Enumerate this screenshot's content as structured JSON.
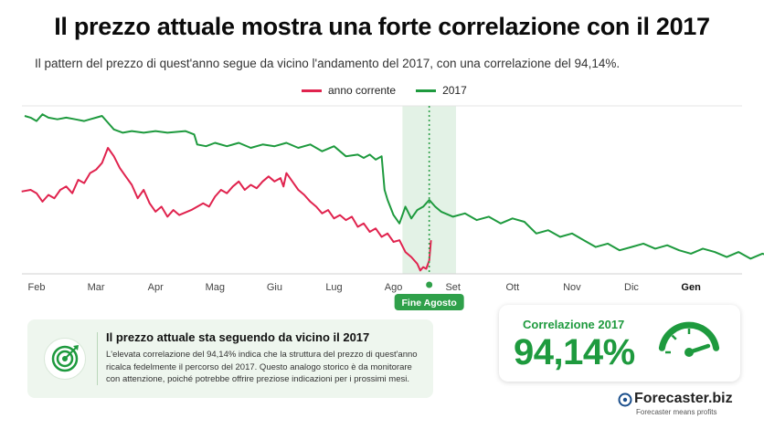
{
  "header": {
    "title": "Il prezzo attuale mostra una forte correlazione con il 2017",
    "subtitle": "Il pattern del prezzo di quest'anno segue da vicino l'andamento del 2017, con una correlazione del 94,14%."
  },
  "colors": {
    "current": "#e0234e",
    "y2017": "#1e9a3e",
    "highlight": "#e3f2e6",
    "marker": "#2fa04a"
  },
  "chart_data": {
    "type": "line",
    "x_ticks": [
      {
        "label": "Feb",
        "bold": false
      },
      {
        "label": "Mar",
        "bold": false
      },
      {
        "label": "Apr",
        "bold": false
      },
      {
        "label": "Mag",
        "bold": false
      },
      {
        "label": "Giu",
        "bold": false
      },
      {
        "label": "Lug",
        "bold": false
      },
      {
        "label": "Ago",
        "bold": false
      },
      {
        "label": "Set",
        "bold": false
      },
      {
        "label": "Ott",
        "bold": false
      },
      {
        "label": "Nov",
        "bold": false
      },
      {
        "label": "Dic",
        "bold": false
      },
      {
        "label": "Gen",
        "bold": true
      }
    ],
    "x_range": [
      0,
      12.8
    ],
    "y_range": [
      0,
      100
    ],
    "grid": false,
    "legend_position": "top-center",
    "highlight_band": [
      6.15,
      7.05
    ],
    "annotation": {
      "label": "Fine Agosto",
      "x": 6.6
    },
    "series": [
      {
        "name": "anno corrente",
        "color_key": "current",
        "points": [
          [
            -0.25,
            49
          ],
          [
            -0.1,
            50
          ],
          [
            0.0,
            48
          ],
          [
            0.1,
            43
          ],
          [
            0.2,
            47
          ],
          [
            0.3,
            45
          ],
          [
            0.4,
            50
          ],
          [
            0.5,
            52
          ],
          [
            0.6,
            48
          ],
          [
            0.7,
            56
          ],
          [
            0.8,
            54
          ],
          [
            0.9,
            60
          ],
          [
            1.0,
            62
          ],
          [
            1.1,
            66
          ],
          [
            1.2,
            75
          ],
          [
            1.3,
            70
          ],
          [
            1.4,
            63
          ],
          [
            1.5,
            58
          ],
          [
            1.6,
            53
          ],
          [
            1.7,
            45
          ],
          [
            1.8,
            50
          ],
          [
            1.9,
            42
          ],
          [
            2.0,
            37
          ],
          [
            2.1,
            40
          ],
          [
            2.2,
            34
          ],
          [
            2.3,
            38
          ],
          [
            2.4,
            35
          ],
          [
            2.6,
            38
          ],
          [
            2.8,
            42
          ],
          [
            2.9,
            40
          ],
          [
            3.0,
            46
          ],
          [
            3.1,
            50
          ],
          [
            3.2,
            48
          ],
          [
            3.3,
            52
          ],
          [
            3.4,
            55
          ],
          [
            3.5,
            50
          ],
          [
            3.6,
            53
          ],
          [
            3.7,
            51
          ],
          [
            3.8,
            55
          ],
          [
            3.9,
            58
          ],
          [
            4.0,
            55
          ],
          [
            4.1,
            57
          ],
          [
            4.15,
            52
          ],
          [
            4.2,
            60
          ],
          [
            4.3,
            55
          ],
          [
            4.4,
            50
          ],
          [
            4.5,
            47
          ],
          [
            4.6,
            43
          ],
          [
            4.7,
            40
          ],
          [
            4.8,
            36
          ],
          [
            4.9,
            38
          ],
          [
            5.0,
            33
          ],
          [
            5.1,
            35
          ],
          [
            5.2,
            32
          ],
          [
            5.3,
            34
          ],
          [
            5.4,
            28
          ],
          [
            5.5,
            30
          ],
          [
            5.6,
            25
          ],
          [
            5.7,
            27
          ],
          [
            5.8,
            22
          ],
          [
            5.9,
            24
          ],
          [
            6.0,
            19
          ],
          [
            6.1,
            20
          ],
          [
            6.2,
            13
          ],
          [
            6.3,
            10
          ],
          [
            6.4,
            6
          ],
          [
            6.45,
            2
          ],
          [
            6.5,
            4
          ],
          [
            6.55,
            3
          ],
          [
            6.6,
            8
          ],
          [
            6.63,
            20
          ]
        ]
      },
      {
        "name": "2017",
        "color_key": "y2017",
        "points": [
          [
            -0.2,
            94
          ],
          [
            -0.1,
            93
          ],
          [
            0.0,
            91
          ],
          [
            0.1,
            95
          ],
          [
            0.2,
            93
          ],
          [
            0.35,
            92
          ],
          [
            0.5,
            93
          ],
          [
            0.65,
            92
          ],
          [
            0.8,
            91
          ],
          [
            0.9,
            92
          ],
          [
            1.0,
            93
          ],
          [
            1.1,
            94
          ],
          [
            1.2,
            90
          ],
          [
            1.3,
            86
          ],
          [
            1.45,
            84
          ],
          [
            1.6,
            85
          ],
          [
            1.8,
            84
          ],
          [
            2.0,
            85
          ],
          [
            2.2,
            84
          ],
          [
            2.5,
            85
          ],
          [
            2.65,
            83
          ],
          [
            2.7,
            77
          ],
          [
            2.85,
            76
          ],
          [
            3.0,
            78
          ],
          [
            3.2,
            76
          ],
          [
            3.4,
            78
          ],
          [
            3.6,
            75
          ],
          [
            3.8,
            77
          ],
          [
            4.0,
            76
          ],
          [
            4.2,
            78
          ],
          [
            4.4,
            75
          ],
          [
            4.6,
            77
          ],
          [
            4.8,
            73
          ],
          [
            5.0,
            76
          ],
          [
            5.2,
            70
          ],
          [
            5.4,
            71
          ],
          [
            5.5,
            69
          ],
          [
            5.6,
            71
          ],
          [
            5.7,
            68
          ],
          [
            5.8,
            70
          ],
          [
            5.85,
            50
          ],
          [
            5.9,
            44
          ],
          [
            6.0,
            35
          ],
          [
            6.1,
            30
          ],
          [
            6.2,
            40
          ],
          [
            6.3,
            33
          ],
          [
            6.4,
            38
          ],
          [
            6.5,
            40
          ],
          [
            6.6,
            44
          ],
          [
            6.7,
            40
          ],
          [
            6.8,
            37
          ],
          [
            7.0,
            34
          ],
          [
            7.2,
            36
          ],
          [
            7.4,
            32
          ],
          [
            7.6,
            34
          ],
          [
            7.8,
            30
          ],
          [
            8.0,
            33
          ],
          [
            8.2,
            31
          ],
          [
            8.4,
            24
          ],
          [
            8.6,
            26
          ],
          [
            8.8,
            22
          ],
          [
            9.0,
            24
          ],
          [
            9.2,
            20
          ],
          [
            9.4,
            16
          ],
          [
            9.6,
            18
          ],
          [
            9.8,
            14
          ],
          [
            10.0,
            16
          ],
          [
            10.2,
            18
          ],
          [
            10.4,
            15
          ],
          [
            10.6,
            17
          ],
          [
            10.8,
            14
          ],
          [
            11.0,
            12
          ],
          [
            11.2,
            15
          ],
          [
            11.4,
            13
          ],
          [
            11.6,
            10
          ],
          [
            11.8,
            13
          ],
          [
            12.0,
            9
          ],
          [
            12.2,
            12
          ],
          [
            12.4,
            10
          ],
          [
            12.6,
            14
          ],
          [
            12.7,
            20
          ],
          [
            12.8,
            23
          ]
        ]
      }
    ]
  },
  "legend": {
    "items": [
      {
        "label": "anno corrente",
        "color_key": "current"
      },
      {
        "label": "2017",
        "color_key": "y2017"
      }
    ]
  },
  "info_box": {
    "icon": "target-icon",
    "title": "Il prezzo attuale sta seguendo da vicino il 2017",
    "text": "L'elevata correlazione del 94,14% indica che la struttura del prezzo di quest'anno ricalca fedelmente il percorso del 2017. Questo analogo storico è da monitorare con attenzione, poiché potrebbe offrire preziose indicazioni per i prossimi mesi."
  },
  "correlation": {
    "label": "Correlazione 2017",
    "value": "94,14%",
    "gauge_fraction": 0.9414,
    "icon": "gauge-icon"
  },
  "brand": {
    "name": "Forecaster.biz",
    "tagline": "Forecaster means profits",
    "icon": "forecaster-logo-icon"
  }
}
